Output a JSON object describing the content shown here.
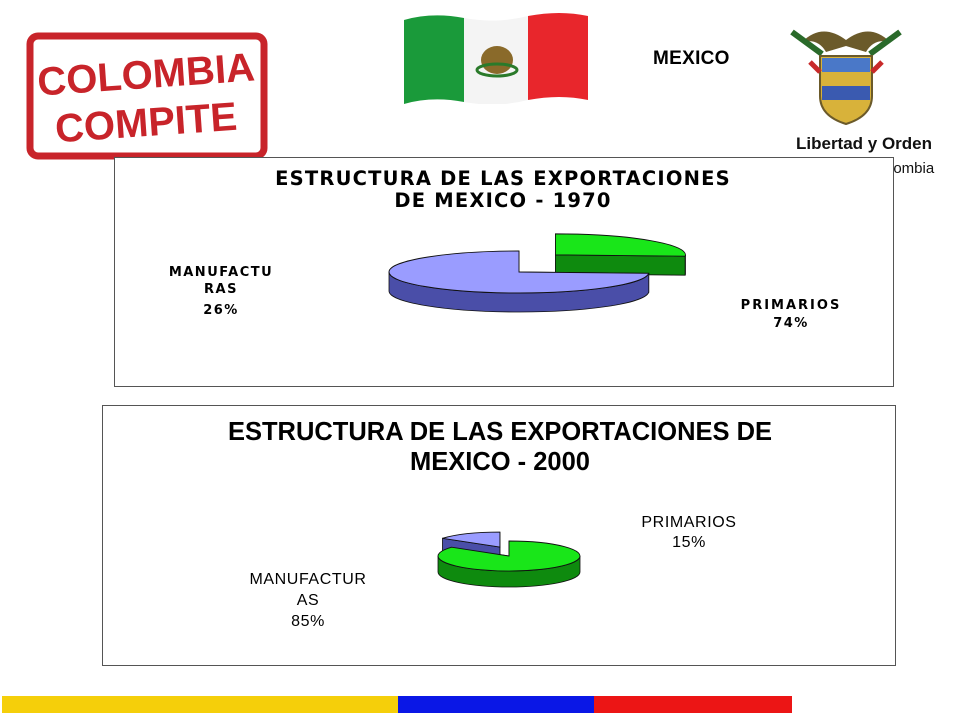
{
  "header": {
    "stamp_line1": "COLOMBIA",
    "stamp_line2": "COMPITE",
    "country": "MEXICO",
    "crest_motto": "Libertad y Orden",
    "crest_country": "lombia"
  },
  "colors": {
    "stamp_red": "#c8242a",
    "manufacturas_top": "#19e619",
    "manufacturas_side": "#0e8a0e",
    "primarios_top": "#9a9cff",
    "primarios_side": "#4a4ea8",
    "stripe_yellow": "#f5cf0a",
    "stripe_blue": "#0a17e6",
    "stripe_red": "#ec1515"
  },
  "chart_data": [
    {
      "type": "pie",
      "title": "ESTRUCTURA DE LAS EXPORTACIONES DE MEXICO - 1970",
      "title_lines": [
        "ESTRUCTURA DE LAS EXPORTACIONES",
        "DE MEXICO - 1970"
      ],
      "categories": [
        "MANUFACTURAS",
        "PRIMARIOS"
      ],
      "values": [
        26,
        74
      ],
      "unit": "%",
      "label_lines": {
        "MANUFACTURAS": [
          "MANUFACTU",
          "RAS",
          "26%"
        ],
        "PRIMARIOS": [
          "PRIMARIOS",
          "74%"
        ]
      },
      "exploded": "MANUFACTURAS",
      "style": "3d"
    },
    {
      "type": "pie",
      "title": "ESTRUCTURA DE LAS EXPORTACIONES DE MEXICO - 2000",
      "title_lines": [
        "ESTRUCTURA DE LAS EXPORTACIONES DE",
        "MEXICO - 2000"
      ],
      "categories": [
        "MANUFACTURAS",
        "PRIMARIOS"
      ],
      "values": [
        85,
        15
      ],
      "unit": "%",
      "label_lines": {
        "MANUFACTURAS": [
          "MANUFACTUR",
          "AS",
          "85%"
        ],
        "PRIMARIOS": [
          "PRIMARIOS",
          "15%"
        ]
      },
      "exploded": "PRIMARIOS",
      "style": "3d"
    }
  ]
}
